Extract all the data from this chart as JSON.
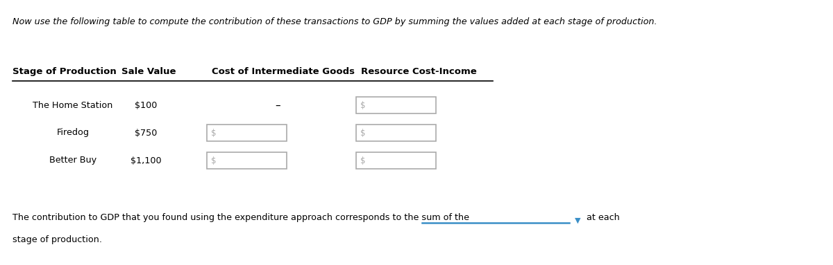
{
  "italic_text": "Now use the following table to compute the contribution of these transactions to GDP by summing the values added at each stage of production.",
  "header_row": [
    "Stage of Production",
    "Sale Value",
    "Cost of Intermediate Goods",
    "Resource Cost-Income"
  ],
  "rows": [
    {
      "stage": "The Home Station",
      "sale_value": "$100",
      "has_box1": false,
      "dash": true
    },
    {
      "stage": "Firedog",
      "sale_value": "$750",
      "has_box1": true,
      "dash": false
    },
    {
      "stage": "Better Buy",
      "sale_value": "$1,100",
      "has_box1": true,
      "dash": false
    }
  ],
  "bottom_text_before": "The contribution to GDP that you found using the expenditure approach corresponds to the sum of the",
  "bottom_text_after": "at each",
  "bottom_text_last_line": "stage of production.",
  "bg_color": "#ffffff",
  "dropdown_color": "#3a8fc7",
  "underline_color": "#3a8fc7",
  "box_edge_color": "#aaaaaa",
  "dollar_color": "#aaaaaa"
}
